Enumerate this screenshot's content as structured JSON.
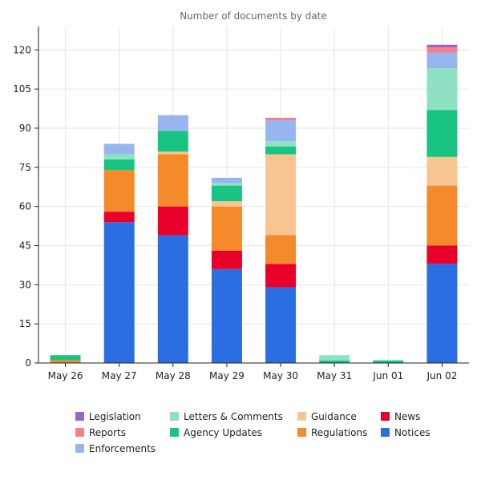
{
  "chart_data": {
    "type": "bar",
    "stacked": true,
    "title": "Number of documents by date",
    "xlabel": "",
    "ylabel": "",
    "ylim": [
      0,
      129
    ],
    "yticks": [
      0,
      15,
      30,
      45,
      60,
      75,
      90,
      105,
      120
    ],
    "grid": true,
    "legend_position": "bottom",
    "categories": [
      "May 26",
      "May 27",
      "May 28",
      "May 29",
      "May 30",
      "May 31",
      "Jun 01",
      "Jun 02"
    ],
    "series": [
      {
        "name": "Notices",
        "color": "#2b6ee2",
        "values": [
          0,
          54,
          49,
          36,
          29,
          0,
          0,
          38
        ]
      },
      {
        "name": "News",
        "color": "#e8002a",
        "values": [
          0,
          4,
          11,
          7,
          9,
          0,
          0,
          7
        ]
      },
      {
        "name": "Regulations",
        "color": "#f58a2a",
        "values": [
          1,
          16,
          20,
          17,
          11,
          0,
          0,
          23
        ]
      },
      {
        "name": "Guidance",
        "color": "#f8c592",
        "values": [
          0,
          0,
          1,
          2,
          31,
          0,
          0,
          11
        ]
      },
      {
        "name": "Agency Updates",
        "color": "#19c382",
        "values": [
          2,
          4,
          8,
          6,
          3,
          1,
          1,
          18
        ]
      },
      {
        "name": "Letters & Comments",
        "color": "#8fe1c3",
        "values": [
          0,
          2,
          0,
          1,
          2,
          2,
          0,
          16
        ]
      },
      {
        "name": "Enforcements",
        "color": "#97b6f0",
        "values": [
          0,
          4,
          6,
          2,
          8,
          0,
          0,
          6
        ]
      },
      {
        "name": "Reports",
        "color": "#f47f8d",
        "values": [
          0,
          0,
          0,
          0,
          1,
          0,
          0,
          2
        ]
      },
      {
        "name": "Legislation",
        "color": "#9b64c6",
        "values": [
          0,
          0,
          0,
          0,
          0,
          0,
          0,
          1
        ]
      }
    ],
    "legend_order": [
      "Legislation",
      "Letters & Comments",
      "Guidance",
      "News",
      "Reports",
      "Agency Updates",
      "Regulations",
      "Notices",
      "Enforcements"
    ]
  }
}
